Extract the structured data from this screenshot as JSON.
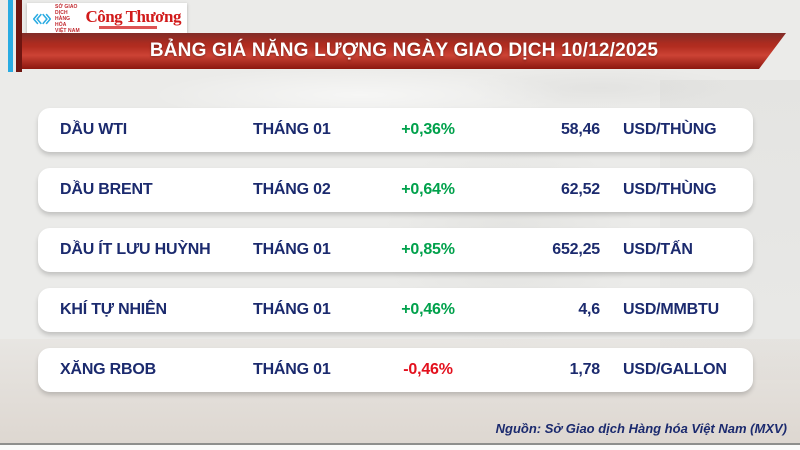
{
  "header": {
    "mxv_logo": {
      "org_line1": "SỞ GIAO DỊCH",
      "org_line2": "HÀNG HÓA",
      "org_line3": "VIỆT NAM"
    },
    "cong_thuong_logo": "Công Thương",
    "title": "BẢNG GIÁ NĂNG LƯỢNG NGÀY GIAO DỊCH 10/12/2025"
  },
  "table": {
    "rows": [
      {
        "name": "DẦU WTI",
        "month": "THÁNG 01",
        "change": "+0,36%",
        "direction": "up",
        "price": "58,46",
        "unit": "USD/THÙNG"
      },
      {
        "name": "DẦU BRENT",
        "month": "THÁNG 02",
        "change": "+0,64%",
        "direction": "up",
        "price": "62,52",
        "unit": "USD/THÙNG"
      },
      {
        "name": "DẦU ÍT LƯU HUỲNH",
        "month": "THÁNG 01",
        "change": "+0,85%",
        "direction": "up",
        "price": "652,25",
        "unit": "USD/TẤN"
      },
      {
        "name": "KHÍ TỰ NHIÊN",
        "month": "THÁNG 01",
        "change": "+0,46%",
        "direction": "up",
        "price": "4,6",
        "unit": "USD/MMBTU"
      },
      {
        "name": "XĂNG RBOB",
        "month": "THÁNG 01",
        "change": "-0,46%",
        "direction": "down",
        "price": "1,78",
        "unit": "USD/GALLON"
      }
    ]
  },
  "footer": {
    "source": "Nguồn: Sở Giao dịch Hàng hóa Việt Nam (MXV)"
  },
  "colors": {
    "navy_text": "#1b2a6e",
    "positive_green": "#00a14b",
    "negative_red": "#e3101d",
    "banner_red": "#c0392b",
    "mxv_cyan": "#29abe2",
    "stripe_maroon": "#6e1510",
    "background": "#ebebe9"
  },
  "chart_data": {
    "type": "table",
    "title": "BẢNG GIÁ NĂNG LƯỢNG NGÀY GIAO DỊCH 10/12/2025",
    "columns": [
      "product",
      "contract_month",
      "change_pct",
      "price",
      "unit"
    ],
    "rows": [
      [
        "DẦU WTI",
        "THÁNG 01",
        0.36,
        58.46,
        "USD/THÙNG"
      ],
      [
        "DẦU BRENT",
        "THÁNG 02",
        0.64,
        62.52,
        "USD/THÙNG"
      ],
      [
        "DẦU ÍT LƯU HUỲNH",
        "THÁNG 01",
        0.85,
        652.25,
        "USD/TẤN"
      ],
      [
        "KHÍ TỰ NHIÊN",
        "THÁNG 01",
        0.46,
        4.6,
        "USD/MMBTU"
      ],
      [
        "XĂNG RBOB",
        "THÁNG 01",
        -0.46,
        1.78,
        "USD/GALLON"
      ]
    ],
    "source": "Nguồn: Sở Giao dịch Hàng hóa Việt Nam (MXV)"
  }
}
